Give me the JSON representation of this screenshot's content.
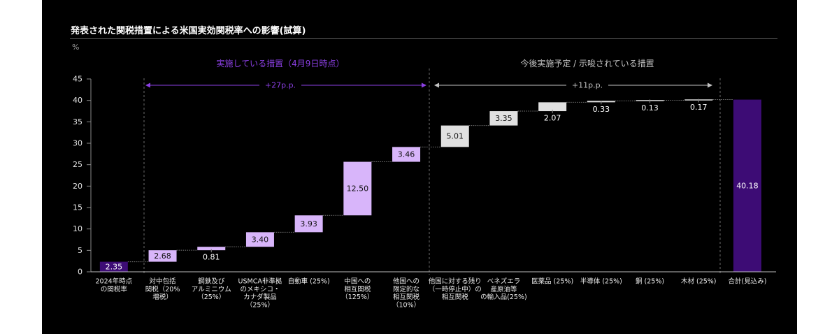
{
  "title": "発表された関税措置による米国実効関税率への影響(試算)",
  "colors": {
    "background": "#000000",
    "base_bar": "#3d0c75",
    "total_bar": "#3d0c75",
    "implemented_bar": "#d8b5fa",
    "planned_bar": "#e0e0e0",
    "implemented_accent": "#8b3fe3",
    "planned_accent": "#c2c2c2"
  },
  "chart_data": {
    "type": "bar",
    "subtype": "waterfall",
    "unit_label": "%",
    "ylim": [
      0,
      45
    ],
    "yticks": [
      0,
      5,
      10,
      15,
      20,
      25,
      30,
      35,
      40,
      45
    ],
    "grid": false,
    "categories": [
      [
        "2024年時点",
        "の関税率"
      ],
      [
        "対中包括",
        "関税（20%",
        "増税）"
      ],
      [
        "鋼鉄及び",
        "アルミニウム",
        "（25%）"
      ],
      [
        "USMCA非準拠",
        "のメキシコ・",
        "カナダ製品",
        "（25%）"
      ],
      [
        "自動車 (25%)"
      ],
      [
        "中国への",
        "相互関税",
        "（125%）"
      ],
      [
        "他国への",
        "限定的な",
        "相互関税",
        "（10%）"
      ],
      [
        "他国に対する残り",
        "（一時停止中）の",
        "相互関税"
      ],
      [
        "ベネズエラ",
        "産原油等",
        "の輸入品(25%)"
      ],
      [
        "医薬品 (25%)"
      ],
      [
        "半導体 (25%)"
      ],
      [
        "銅 (25%)"
      ],
      [
        "木材 (25%)"
      ],
      [
        "合計(見込み)"
      ]
    ],
    "values": [
      2.35,
      2.68,
      0.81,
      3.4,
      3.93,
      12.5,
      3.46,
      5.01,
      3.35,
      2.07,
      0.33,
      0.13,
      0.17,
      40.18
    ],
    "bar_groups": [
      "base",
      "implemented",
      "implemented",
      "implemented",
      "implemented",
      "implemented",
      "implemented",
      "planned",
      "planned",
      "planned",
      "planned",
      "planned",
      "planned",
      "total"
    ],
    "groups": {
      "implemented": {
        "label": "実施している措置（4月9日時点）",
        "change_label": "+27p.p."
      },
      "planned": {
        "label": "今後実施予定 / 示唆されている措置",
        "change_label": "+11p.p."
      }
    }
  }
}
